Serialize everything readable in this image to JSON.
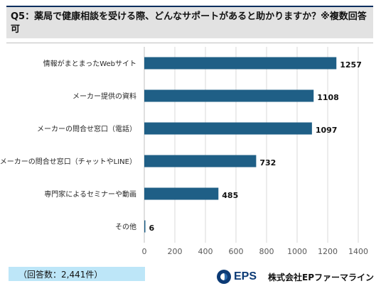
{
  "header": {
    "title": "Q5：薬局で健康相談を受ける際、どんなサポートがあると助かりますか？※複数回答可"
  },
  "chart_data": {
    "type": "bar",
    "orientation": "horizontal",
    "categories": [
      "情報がまとまったWebサイト",
      "メーカー提供の資料",
      "メーカーの問合せ窓口（電話）",
      "メーカーの問合せ窓口（チャットやLINE）",
      "専門家によるセミナーや動画",
      "その他"
    ],
    "values": [
      1257,
      1108,
      1097,
      732,
      485,
      6
    ],
    "xlim": [
      0,
      1400
    ],
    "xticks": [
      "0",
      "200",
      "400",
      "600",
      "800",
      "1000",
      "1200",
      "1400"
    ],
    "bar_color": "#1f5f86",
    "grid": true,
    "legend": "none"
  },
  "footer": {
    "note": "（回答数：2,441件）",
    "logo_mark": "EPS",
    "company": "株式会社EPファーマライン"
  }
}
